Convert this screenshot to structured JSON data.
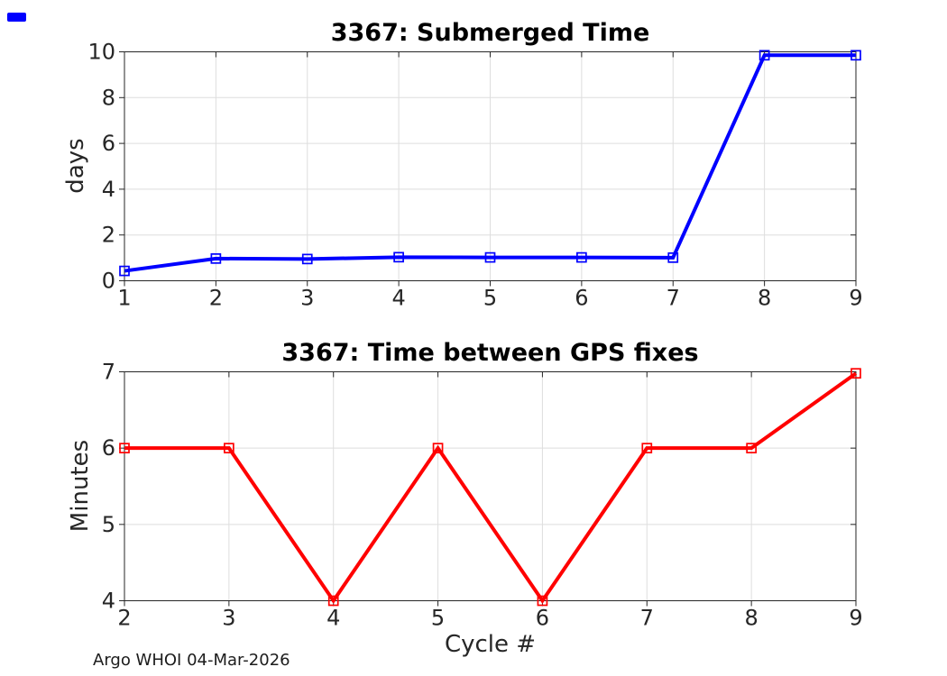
{
  "figure": {
    "footer": "Argo WHOI 04-Mar-2026",
    "background": "#ffffff",
    "axis_color": "#262626",
    "grid_color": "#dedede",
    "tag_color": "#0000ff"
  },
  "chart_data": [
    {
      "type": "line",
      "title": "3367: Submerged Time",
      "xlabel": "",
      "ylabel": "days",
      "x": [
        1,
        2,
        3,
        4,
        5,
        6,
        7,
        8,
        9
      ],
      "y": [
        0.43,
        0.97,
        0.95,
        1.03,
        1.02,
        1.02,
        1.01,
        9.85,
        9.85
      ],
      "xlim": [
        1,
        9
      ],
      "ylim": [
        0,
        10
      ],
      "xticks": [
        1,
        2,
        3,
        4,
        5,
        6,
        7,
        8,
        9
      ],
      "yticks": [
        0,
        2,
        4,
        6,
        8,
        10
      ],
      "series_color": "#0000ff",
      "marker": "open-square",
      "grid": true,
      "legend": "none"
    },
    {
      "type": "line",
      "title": "3367: Time between GPS fixes",
      "xlabel": "Cycle #",
      "ylabel": "Minutes",
      "x": [
        2,
        3,
        4,
        5,
        6,
        7,
        8,
        9
      ],
      "y": [
        6,
        6,
        4,
        6,
        4,
        6,
        6,
        6.98
      ],
      "xlim": [
        2,
        9
      ],
      "ylim": [
        4,
        7
      ],
      "xticks": [
        2,
        3,
        4,
        5,
        6,
        7,
        8,
        9
      ],
      "yticks": [
        4,
        5,
        6,
        7
      ],
      "series_color": "#ff0000",
      "marker": "open-square",
      "grid": true,
      "legend": "none"
    }
  ]
}
